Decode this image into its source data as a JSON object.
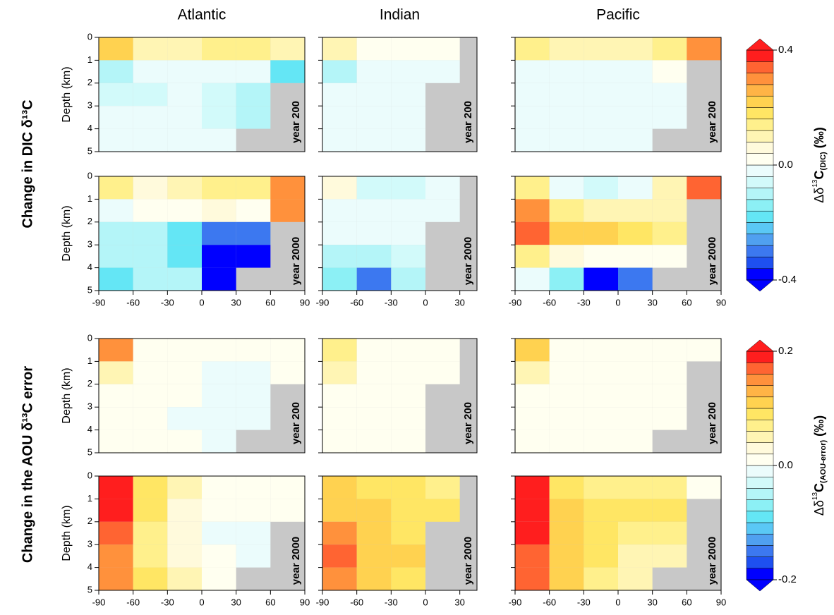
{
  "chart_data": {
    "type": "heatmap",
    "ylabel": "Depth (km)",
    "ylim": [
      0,
      5
    ],
    "y_inverted": true,
    "yticks": [
      0,
      1,
      2,
      3,
      4,
      5
    ],
    "ybins": [
      0,
      1,
      2,
      3,
      4,
      5
    ],
    "land_color": "#c8c8c8",
    "columns": [
      {
        "name": "Atlantic",
        "xlim": [
          -90,
          90
        ],
        "xticks": [
          -90,
          -60,
          -30,
          0,
          30,
          60,
          90
        ],
        "xbins": [
          -90,
          -60,
          -30,
          0,
          30,
          60,
          90
        ]
      },
      {
        "name": "Indian",
        "xlim": [
          -90,
          45
        ],
        "xticks": [
          -90,
          -60,
          -30,
          0,
          30
        ],
        "xbins": [
          -90,
          -60,
          -30,
          0,
          30,
          45
        ]
      },
      {
        "name": "Pacific",
        "xlim": [
          -90,
          90
        ],
        "xticks": [
          -90,
          -60,
          -30,
          0,
          30,
          60,
          90
        ],
        "xbins": [
          -90,
          -60,
          -30,
          0,
          30,
          60,
          90
        ]
      }
    ],
    "blocks": [
      {
        "row_title": "Change in DIC δ¹³C",
        "colorbar": {
          "label_parts": [
            "Δδ",
            "13",
            "C",
            "(DIC)",
            " (‰)"
          ],
          "clim": [
            -0.4,
            0.4
          ],
          "ticks": [
            -0.4,
            {
              "value": 0,
              "label": "0.0"
            },
            0.4
          ],
          "colors": [
            "#0000ff",
            "#1e50f0",
            "#3c78f0",
            "#50a0f0",
            "#5ac8f5",
            "#64e6f5",
            "#8cf0f5",
            "#b4f5f8",
            "#d2fafa",
            "#ebfcfc",
            "#fffff0",
            "#fffadc",
            "#fff5b4",
            "#fff08c",
            "#ffe664",
            "#ffd250",
            "#ffb446",
            "#ff913c",
            "#ff6432",
            "#ff1e1e"
          ]
        },
        "panels": [
          {
            "label": "year 200",
            "z": [
              [
                0.2,
                0.08,
                0.1,
                0.15,
                0.15,
                0.1
              ],
              [
                -0.08,
                -0.04,
                -0.02,
                -0.02,
                -0.04,
                -0.2
              ],
              [
                -0.06,
                -0.05,
                -0.04,
                -0.06,
                -0.1,
                null
              ],
              [
                -0.04,
                -0.03,
                -0.03,
                -0.06,
                -0.1,
                null
              ],
              [
                -0.02,
                -0.02,
                -0.02,
                -0.04,
                null,
                null
              ]
            ]
          },
          {
            "label": "year 200",
            "z": [
              [
                0.1,
                0.02,
                0.02,
                0.04,
                null
              ],
              [
                -0.08,
                -0.04,
                -0.02,
                -0.02,
                null
              ],
              [
                -0.04,
                -0.03,
                -0.02,
                null,
                null
              ],
              [
                -0.03,
                -0.02,
                -0.02,
                null,
                null
              ],
              [
                -0.02,
                -0.02,
                -0.01,
                null,
                null
              ]
            ]
          },
          {
            "label": "year 200",
            "z": [
              [
                0.12,
                0.1,
                0.1,
                0.1,
                0.15,
                0.3
              ],
              [
                -0.04,
                -0.02,
                -0.01,
                -0.01,
                0.02,
                null
              ],
              [
                -0.04,
                -0.02,
                -0.01,
                -0.01,
                -0.01,
                null
              ],
              [
                -0.03,
                -0.02,
                -0.01,
                -0.01,
                -0.01,
                null
              ],
              [
                -0.03,
                -0.02,
                -0.01,
                -0.01,
                null,
                null
              ]
            ]
          },
          {
            "label": "year 2000",
            "z": [
              [
                0.15,
                0.05,
                0.08,
                0.12,
                0.12,
                0.3
              ],
              [
                -0.02,
                0.02,
                0.04,
                0.06,
                0.02,
                0.3
              ],
              [
                -0.1,
                -0.12,
                -0.18,
                -0.3,
                -0.3,
                null
              ],
              [
                -0.1,
                -0.12,
                -0.2,
                -0.4,
                -0.4,
                null
              ],
              [
                -0.2,
                -0.08,
                -0.08,
                -0.4,
                null,
                null
              ]
            ]
          },
          {
            "label": "year 2000",
            "z": [
              [
                0.05,
                -0.05,
                -0.06,
                -0.04,
                null
              ],
              [
                -0.02,
                -0.03,
                -0.01,
                -0.01,
                null
              ],
              [
                -0.04,
                -0.04,
                -0.02,
                null,
                null
              ],
              [
                -0.08,
                -0.1,
                -0.06,
                null,
                null
              ],
              [
                -0.15,
                -0.3,
                -0.1,
                null,
                null
              ]
            ]
          },
          {
            "label": "year 2000",
            "z": [
              [
                0.15,
                -0.02,
                -0.06,
                -0.04,
                0.1,
                0.35
              ],
              [
                0.3,
                0.15,
                0.1,
                0.1,
                0.1,
                null
              ],
              [
                0.35,
                0.22,
                0.2,
                0.18,
                0.15,
                null
              ],
              [
                0.15,
                0.05,
                0.02,
                0.02,
                0.02,
                null
              ],
              [
                -0.04,
                -0.15,
                -0.4,
                -0.3,
                null,
                null
              ]
            ]
          }
        ]
      },
      {
        "row_title": "Change in the AOU δ¹³C error",
        "colorbar": {
          "label_parts": [
            "Δδ",
            "13",
            "C",
            "(AOU-error)",
            " (‰)"
          ],
          "clim": [
            -0.2,
            0.2
          ],
          "ticks": [
            -0.2,
            {
              "value": 0,
              "label": "0.0"
            },
            0.2
          ],
          "colors": [
            "#0000ff",
            "#1e50f0",
            "#3c78f0",
            "#50a0f0",
            "#5ac8f5",
            "#64e6f5",
            "#8cf0f5",
            "#b4f5f8",
            "#d2fafa",
            "#ebfcfc",
            "#fffff0",
            "#fffadc",
            "#fff5b4",
            "#fff08c",
            "#ffe664",
            "#ffd250",
            "#ffb446",
            "#ff913c",
            "#ff6432",
            "#ff1e1e"
          ]
        },
        "panels": [
          {
            "label": "year 200",
            "z": [
              [
                0.15,
                0.02,
                0.01,
                0.01,
                0.01,
                0.01
              ],
              [
                0.05,
                0.01,
                0,
                -0.01,
                -0.01,
                0
              ],
              [
                0.02,
                0.01,
                0,
                -0.01,
                -0.01,
                null
              ],
              [
                0.01,
                0,
                -0.01,
                -0.01,
                -0.01,
                null
              ],
              [
                0.01,
                0,
                0,
                -0.01,
                null,
                null
              ]
            ]
          },
          {
            "label": "year 200",
            "z": [
              [
                0.06,
                0.02,
                0.01,
                0.01,
                null
              ],
              [
                0.04,
                0.01,
                0,
                0,
                null
              ],
              [
                0.02,
                0,
                0,
                null,
                null
              ],
              [
                0.01,
                0,
                0,
                null,
                null
              ],
              [
                0.01,
                0,
                0,
                null,
                null
              ]
            ]
          },
          {
            "label": "year 200",
            "z": [
              [
                0.1,
                0.01,
                0,
                0,
                0,
                0
              ],
              [
                0.04,
                0.01,
                0,
                0,
                0,
                null
              ],
              [
                0.01,
                0,
                0,
                0,
                0,
                null
              ],
              [
                0.01,
                0,
                0,
                0,
                0,
                null
              ],
              [
                0.01,
                0,
                0,
                0,
                null,
                null
              ]
            ]
          },
          {
            "label": "year 2000",
            "z": [
              [
                0.2,
                0.08,
                0.04,
                0.02,
                0.02,
                0.02
              ],
              [
                0.2,
                0.08,
                0.03,
                0,
                0,
                0
              ],
              [
                0.16,
                0.06,
                0.03,
                -0.01,
                -0.01,
                null
              ],
              [
                0.15,
                0.06,
                0.03,
                0,
                -0.01,
                null
              ],
              [
                0.15,
                0.08,
                0.04,
                0.02,
                null,
                null
              ]
            ]
          },
          {
            "label": "year 2000",
            "z": [
              [
                0.12,
                0.08,
                0.08,
                0.06,
                null
              ],
              [
                0.12,
                0.1,
                0.08,
                0.08,
                null
              ],
              [
                0.14,
                0.1,
                0.08,
                null,
                null
              ],
              [
                0.16,
                0.12,
                0.1,
                null,
                null
              ],
              [
                0.14,
                0.12,
                0.08,
                null,
                null
              ]
            ]
          },
          {
            "label": "year 2000",
            "z": [
              [
                0.2,
                0.08,
                0.06,
                0.06,
                0.06,
                0.02
              ],
              [
                0.2,
                0.1,
                0.08,
                0.08,
                0.08,
                null
              ],
              [
                0.2,
                0.1,
                0.08,
                0.06,
                0.06,
                null
              ],
              [
                0.16,
                0.1,
                0.08,
                0.05,
                0.04,
                null
              ],
              [
                0.16,
                0.1,
                0.06,
                0.04,
                null,
                null
              ]
            ]
          }
        ]
      }
    ]
  }
}
